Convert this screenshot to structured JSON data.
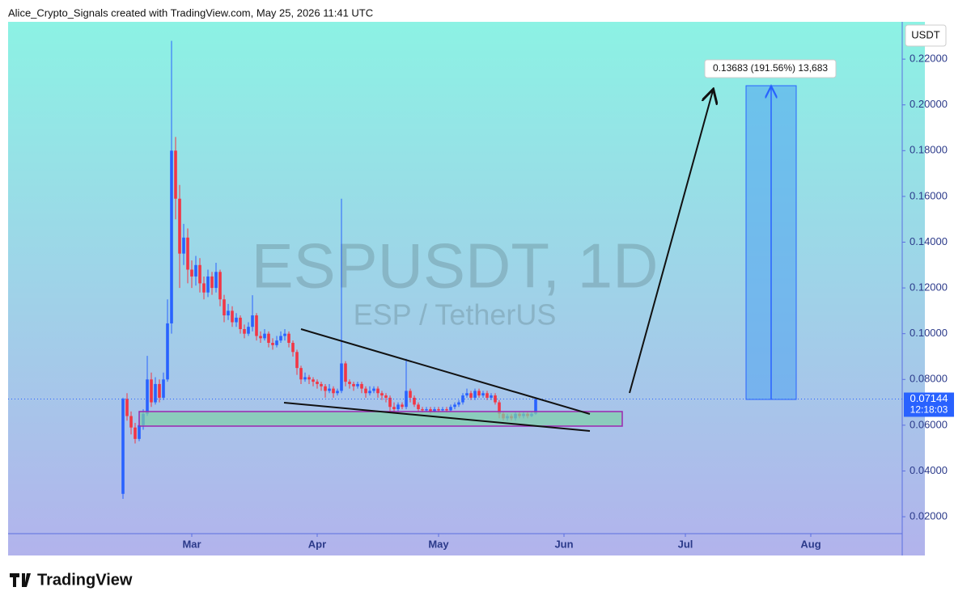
{
  "chart_data": {
    "type": "candlestick",
    "attribution": "Alice_Crypto_Signals created with TradingView.com, May 25, 2026 11:41 UTC",
    "title": "ESPUSDT, 1D",
    "subtitle": "ESP / TetherUS",
    "y_axis_label": "USDT",
    "brand": "TradingView",
    "measure_label": "0.13683 (191.56%) 13,683",
    "last_price": 0.07144,
    "countdown": "12:18:03",
    "up_color": "#2962ff",
    "down_color": "#f23645",
    "open": [
      0.03,
      0.0715,
      0.064,
      0.059,
      0.054,
      0.06,
      0.065,
      0.08,
      0.07,
      0.078,
      0.072,
      0.08,
      0.1045,
      0.18,
      0.159,
      0.135,
      0.142,
      0.128,
      0.125,
      0.13,
      0.122,
      0.118,
      0.125,
      0.12,
      0.127,
      0.115,
      0.108,
      0.11,
      0.105,
      0.107,
      0.102,
      0.1,
      0.103,
      0.108,
      0.099,
      0.098,
      0.1,
      0.096,
      0.095,
      0.097,
      0.099,
      0.1,
      0.096,
      0.092,
      0.085,
      0.08,
      0.081,
      0.08,
      0.079,
      0.078,
      0.077,
      0.075,
      0.076,
      0.074,
      0.075,
      0.087,
      0.079,
      0.078,
      0.077,
      0.078,
      0.076,
      0.074,
      0.075,
      0.076,
      0.074,
      0.073,
      0.072,
      0.068,
      0.067,
      0.069,
      0.068,
      0.075,
      0.072,
      0.069,
      0.067,
      0.0665,
      0.067,
      0.066,
      0.067,
      0.0665,
      0.067,
      0.0665,
      0.068,
      0.069,
      0.07,
      0.073,
      0.074,
      0.072,
      0.075,
      0.073,
      0.074,
      0.072,
      0.073,
      0.07,
      0.065,
      0.063,
      0.064,
      0.063,
      0.065,
      0.064,
      0.065,
      0.064,
      0.065
    ],
    "high": [
      0.072,
      0.074,
      0.066,
      0.061,
      0.062,
      0.067,
      0.0903,
      0.083,
      0.081,
      0.08,
      0.083,
      0.115,
      0.228,
      0.186,
      0.165,
      0.148,
      0.146,
      0.132,
      0.134,
      0.133,
      0.125,
      0.128,
      0.127,
      0.131,
      0.128,
      0.117,
      0.113,
      0.112,
      0.109,
      0.108,
      0.104,
      0.105,
      0.1168,
      0.109,
      0.101,
      0.102,
      0.101,
      0.098,
      0.099,
      0.101,
      0.102,
      0.101,
      0.097,
      0.093,
      0.086,
      0.083,
      0.082,
      0.081,
      0.08,
      0.079,
      0.078,
      0.078,
      0.077,
      0.076,
      0.159,
      0.088,
      0.08,
      0.079,
      0.079,
      0.079,
      0.077,
      0.077,
      0.077,
      0.077,
      0.075,
      0.074,
      0.073,
      0.07,
      0.07,
      0.07,
      0.089,
      0.076,
      0.073,
      0.07,
      0.068,
      0.068,
      0.068,
      0.068,
      0.068,
      0.068,
      0.068,
      0.069,
      0.07,
      0.071,
      0.074,
      0.076,
      0.075,
      0.076,
      0.076,
      0.075,
      0.075,
      0.074,
      0.074,
      0.071,
      0.066,
      0.065,
      0.065,
      0.066,
      0.066,
      0.066,
      0.066,
      0.066,
      0.072
    ],
    "low": [
      0.0278,
      0.062,
      0.056,
      0.052,
      0.053,
      0.058,
      0.064,
      0.068,
      0.069,
      0.07,
      0.071,
      0.079,
      0.1,
      0.15,
      0.12,
      0.13,
      0.122,
      0.12,
      0.121,
      0.118,
      0.115,
      0.116,
      0.117,
      0.118,
      0.112,
      0.105,
      0.106,
      0.103,
      0.103,
      0.1,
      0.098,
      0.099,
      0.101,
      0.097,
      0.096,
      0.097,
      0.094,
      0.093,
      0.094,
      0.096,
      0.097,
      0.094,
      0.09,
      0.082,
      0.078,
      0.079,
      0.078,
      0.077,
      0.076,
      0.075,
      0.072,
      0.074,
      0.072,
      0.073,
      0.074,
      0.077,
      0.076,
      0.075,
      0.076,
      0.074,
      0.072,
      0.073,
      0.074,
      0.072,
      0.071,
      0.07,
      0.066,
      0.065,
      0.066,
      0.067,
      0.067,
      0.07,
      0.068,
      0.066,
      0.0655,
      0.066,
      0.065,
      0.0655,
      0.0655,
      0.066,
      0.0655,
      0.066,
      0.067,
      0.068,
      0.069,
      0.072,
      0.071,
      0.071,
      0.072,
      0.072,
      0.071,
      0.071,
      0.069,
      0.063,
      0.062,
      0.062,
      0.062,
      0.062,
      0.063,
      0.063,
      0.063,
      0.0635,
      0.0645
    ],
    "close": [
      0.0715,
      0.064,
      0.059,
      0.054,
      0.06,
      0.065,
      0.08,
      0.07,
      0.078,
      0.072,
      0.08,
      0.1045,
      0.18,
      0.159,
      0.135,
      0.142,
      0.128,
      0.125,
      0.13,
      0.122,
      0.118,
      0.125,
      0.12,
      0.127,
      0.115,
      0.108,
      0.11,
      0.105,
      0.107,
      0.102,
      0.1,
      0.103,
      0.108,
      0.099,
      0.098,
      0.1,
      0.096,
      0.095,
      0.097,
      0.099,
      0.1,
      0.096,
      0.092,
      0.085,
      0.08,
      0.081,
      0.08,
      0.079,
      0.078,
      0.077,
      0.075,
      0.076,
      0.074,
      0.075,
      0.087,
      0.079,
      0.078,
      0.077,
      0.078,
      0.076,
      0.074,
      0.075,
      0.076,
      0.074,
      0.073,
      0.072,
      0.068,
      0.067,
      0.069,
      0.068,
      0.075,
      0.072,
      0.069,
      0.067,
      0.0665,
      0.067,
      0.066,
      0.067,
      0.0665,
      0.067,
      0.0665,
      0.068,
      0.069,
      0.07,
      0.073,
      0.074,
      0.072,
      0.075,
      0.073,
      0.074,
      0.072,
      0.073,
      0.07,
      0.065,
      0.063,
      0.064,
      0.063,
      0.065,
      0.064,
      0.065,
      0.064,
      0.065,
      0.0714
    ],
    "xlim": [
      -28.4,
      192.6
    ],
    "xticks": [
      {
        "value": 17,
        "label": "Mar"
      },
      {
        "value": 48,
        "label": "Apr"
      },
      {
        "value": 78,
        "label": "May"
      },
      {
        "value": 109,
        "label": "Jun"
      },
      {
        "value": 139,
        "label": "Jul"
      },
      {
        "value": 170,
        "label": "Aug"
      }
    ],
    "ylim": [
      0.0126,
      0.2363
    ],
    "yticks": [
      {
        "value": 0.02,
        "label": "0.02000"
      },
      {
        "value": 0.04,
        "label": "0.04000"
      },
      {
        "value": 0.06,
        "label": "0.06000"
      },
      {
        "value": 0.08,
        "label": "0.08000"
      },
      {
        "value": 0.1,
        "label": "0.10000"
      },
      {
        "value": 0.12,
        "label": "0.12000"
      },
      {
        "value": 0.14,
        "label": "0.14000"
      },
      {
        "value": 0.16,
        "label": "0.16000"
      },
      {
        "value": 0.18,
        "label": "0.18000"
      },
      {
        "value": 0.2,
        "label": "0.20000"
      },
      {
        "value": 0.22,
        "label": "0.22000"
      }
    ]
  }
}
